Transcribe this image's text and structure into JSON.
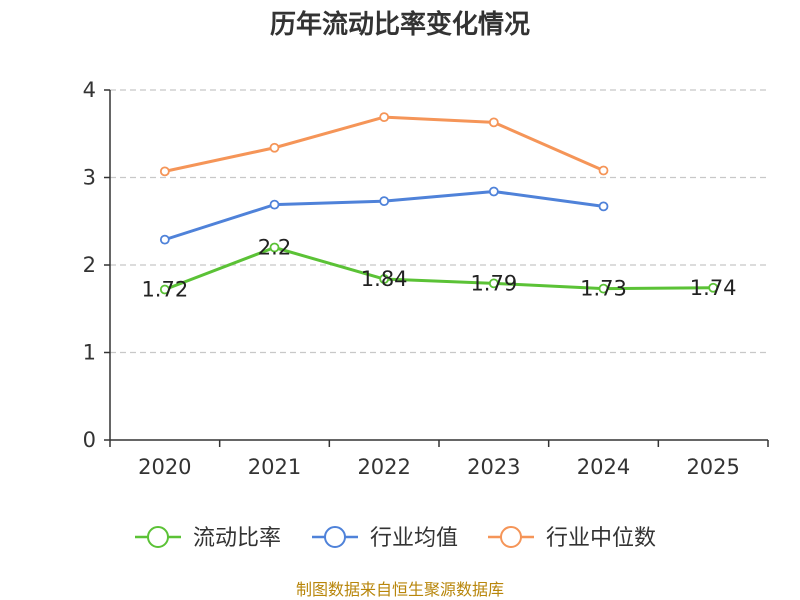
{
  "chart_data": {
    "type": "line",
    "title": "历年流动比率变化情况",
    "categories": [
      "2020",
      "2021",
      "2022",
      "2023",
      "2024",
      "2025"
    ],
    "ylim": [
      0,
      4
    ],
    "yticks": [
      0,
      1,
      2,
      3,
      4
    ],
    "ytick_labels": [
      "0",
      "1",
      "2",
      "3",
      "4"
    ],
    "grid": true,
    "legend_position": "bottom",
    "series": [
      {
        "name": "流动比率",
        "color": "#5bc236",
        "values": [
          1.72,
          2.2,
          1.84,
          1.79,
          1.73,
          1.74
        ],
        "labels": [
          "1.72",
          "2.2",
          "1.84",
          "1.79",
          "1.73",
          "1.74"
        ]
      },
      {
        "name": "行业均值",
        "color": "#4f82d9",
        "values": [
          2.29,
          2.69,
          2.73,
          2.84,
          2.67,
          null
        ]
      },
      {
        "name": "行业中位数",
        "color": "#f59558",
        "values": [
          3.07,
          3.34,
          3.69,
          3.63,
          3.08,
          null
        ]
      }
    ],
    "source": "制图数据来自恒生聚源数据库"
  }
}
